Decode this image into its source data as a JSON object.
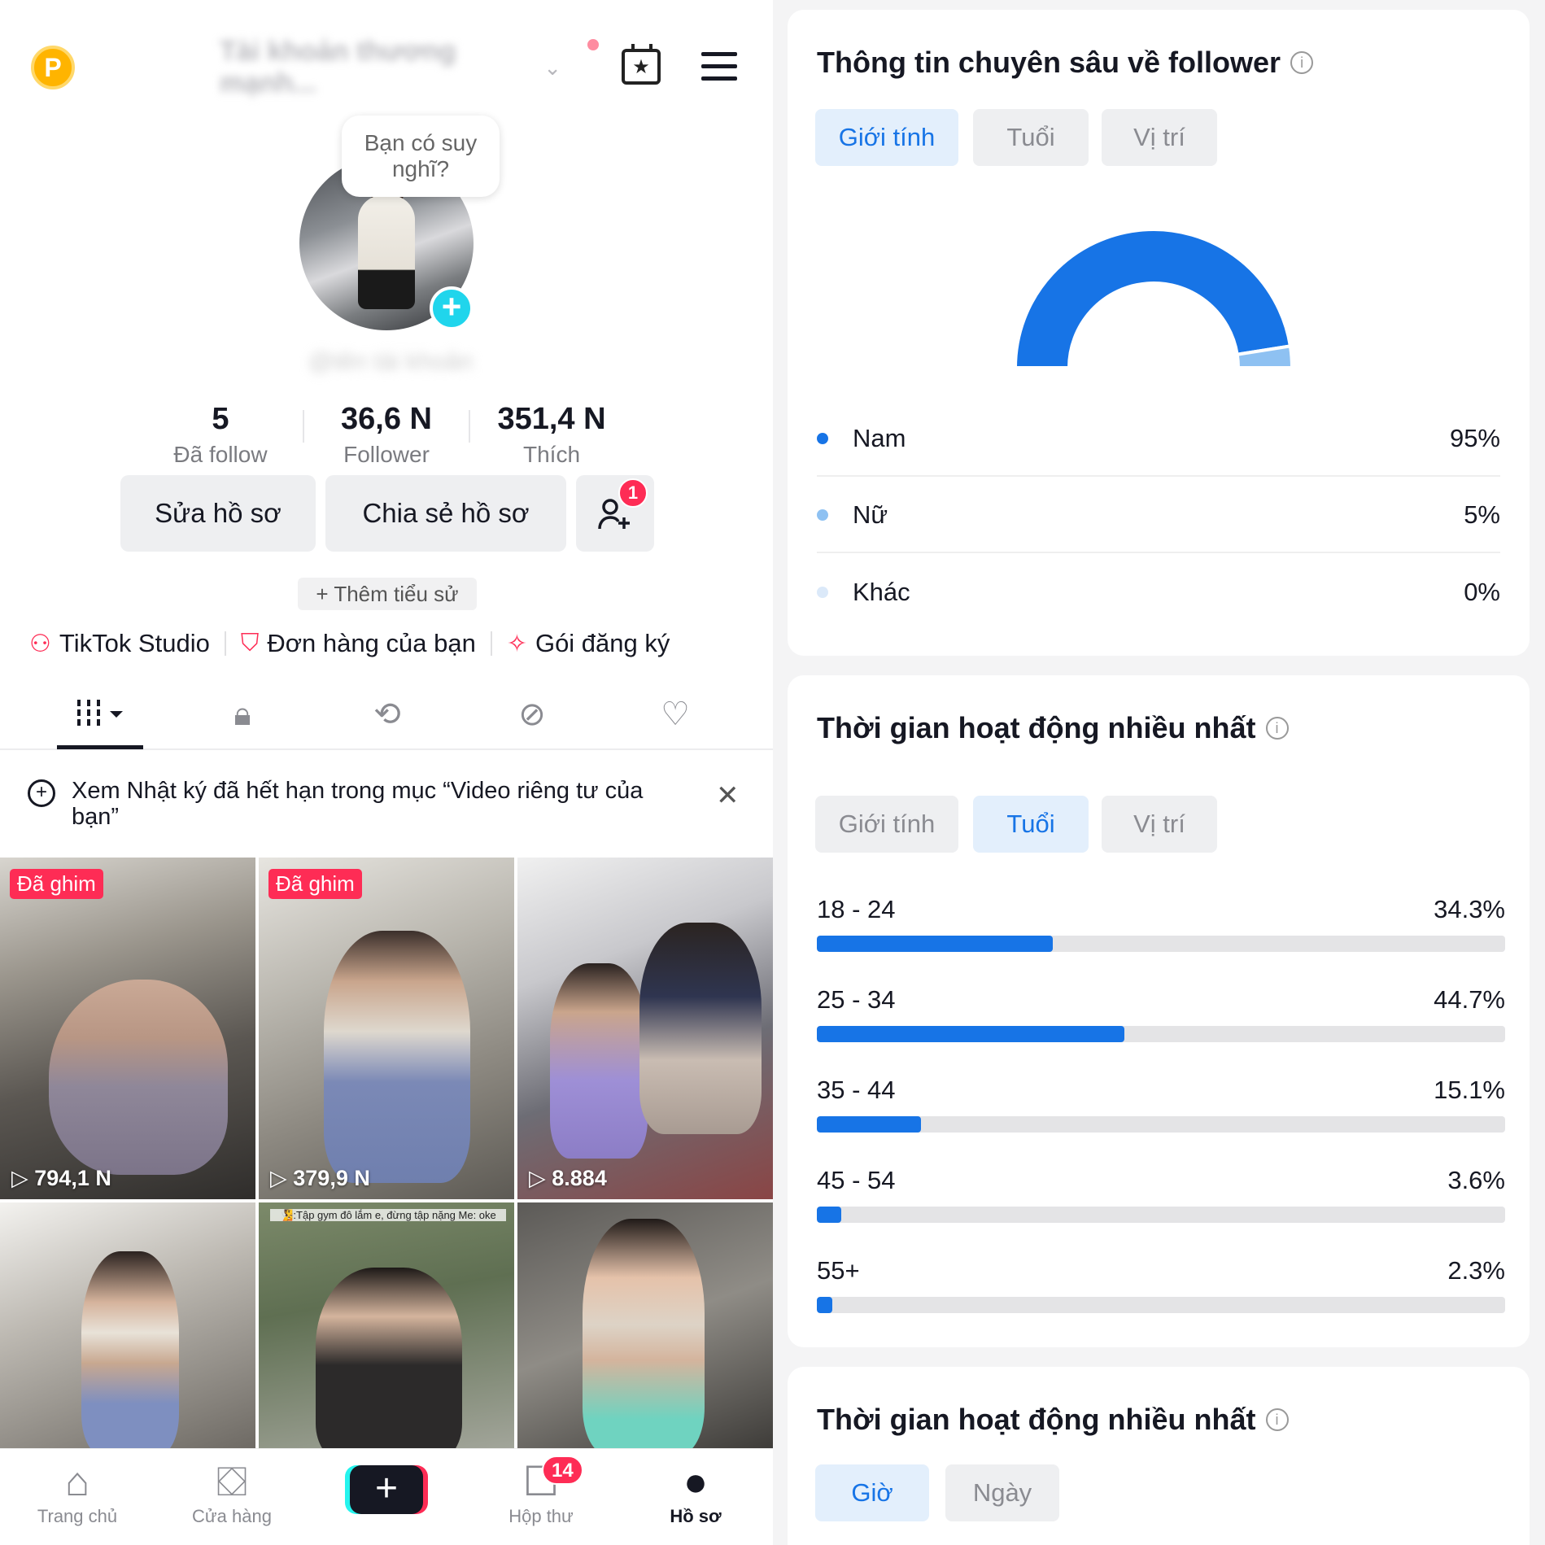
{
  "profile": {
    "coin_label": "P",
    "account_name": "Tài khoản thương mạnh...",
    "bubble_text": "Bạn có suy nghĩ?",
    "blurred_username": "@tên tài khoản",
    "stats": [
      {
        "value": "5",
        "label": "Đã follow"
      },
      {
        "value": "36,6 N",
        "label": "Follower"
      },
      {
        "value": "351,4 N",
        "label": "Thích"
      }
    ],
    "buttons": {
      "edit": "Sửa hồ sơ",
      "share": "Chia sẻ hồ sơ",
      "add_friend_badge": "1"
    },
    "bio": "+ Thêm tiểu sử",
    "links": [
      "TikTok Studio",
      "Đơn hàng của bạn",
      "Gói đăng ký"
    ],
    "notice": "Xem Nhật ký đã hết hạn trong mục “Video riêng tư của bạn”",
    "videos": [
      {
        "pinned": "Đã ghim",
        "views": "794,1 N"
      },
      {
        "pinned": "Đã ghim",
        "views": "379,9 N"
      },
      {
        "pinned": "",
        "views": "8.884"
      },
      {
        "pinned": "",
        "views": ""
      },
      {
        "pinned": "",
        "views": "",
        "caption": "🧏:Tập gym đô lắm e, đừng tập nặng Me: oke"
      },
      {
        "pinned": "",
        "views": ""
      }
    ],
    "nav": [
      {
        "label": "Trang chủ",
        "icon": "home-icon"
      },
      {
        "label": "Cửa hàng",
        "icon": "shop-icon"
      },
      {
        "label": "",
        "icon": "create-icon"
      },
      {
        "label": "Hộp thư",
        "icon": "inbox-icon",
        "badge": "14"
      },
      {
        "label": "Hồ sơ",
        "icon": "profile-icon"
      }
    ]
  },
  "insights": {
    "gender": {
      "title": "Thông tin chuyên sâu về follower",
      "tabs": [
        "Giới tính",
        "Tuổi",
        "Vị trí"
      ],
      "active_tab": 0,
      "legend": [
        {
          "name": "Nam",
          "value": "95%",
          "color": "#1774e6"
        },
        {
          "name": "Nữ",
          "value": "5%",
          "color": "#8ec1f2"
        },
        {
          "name": "Khác",
          "value": "0%",
          "color": "#dbe9f9"
        }
      ]
    },
    "age": {
      "title": "Thời gian hoạt động nhiều nhất",
      "tabs": [
        "Giới tính",
        "Tuổi",
        "Vị trí"
      ],
      "active_tab": 1,
      "rows": [
        {
          "label": "18 - 24",
          "value": "34.3%"
        },
        {
          "label": "25 - 34",
          "value": "44.7%"
        },
        {
          "label": "35 - 44",
          "value": "15.1%"
        },
        {
          "label": "45 - 54",
          "value": "3.6%"
        },
        {
          "label": "55+",
          "value": "2.3%"
        }
      ]
    },
    "activity": {
      "title": "Thời gian hoạt động nhiều nhất",
      "tabs": [
        "Giờ",
        "Ngày"
      ],
      "active_tab": 0
    }
  },
  "chart_data": [
    {
      "type": "pie",
      "categories": [
        "Nam",
        "Nữ",
        "Khác"
      ],
      "values": [
        95,
        5,
        0
      ],
      "title": "",
      "colors": [
        "#1774e6",
        "#8ec1f2",
        "#dbe9f9"
      ]
    },
    {
      "type": "bar",
      "categories": [
        "18 - 24",
        "25 - 34",
        "35 - 44",
        "45 - 54",
        "55+"
      ],
      "values": [
        34.3,
        44.7,
        15.1,
        3.6,
        2.3
      ],
      "title": "",
      "xlabel": "",
      "ylabel": "",
      "ylim": [
        0,
        100
      ],
      "orientation": "horizontal"
    }
  ]
}
